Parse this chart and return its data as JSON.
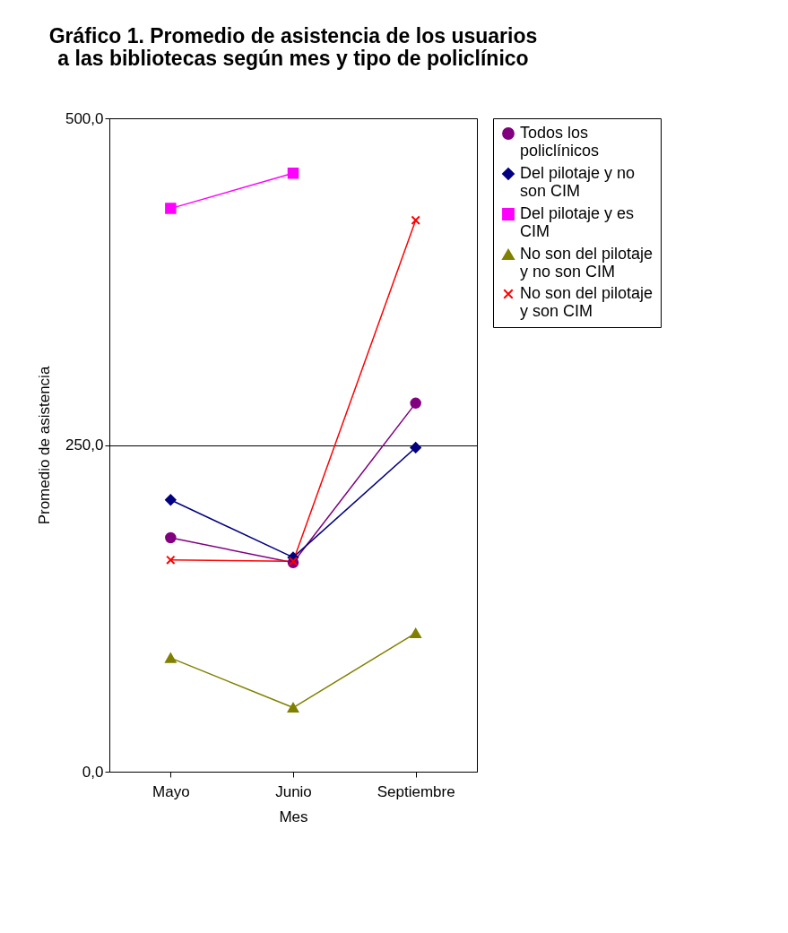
{
  "chart_data": {
    "type": "line",
    "title": "Gráfico 1. Promedio de asistencia de los usuarios a las bibliotecas según mes y tipo de policlínico",
    "xlabel": "Mes",
    "ylabel": "Promedio de asistencia",
    "categories": [
      "Mayo",
      "Junio",
      "Septiembre"
    ],
    "series": [
      {
        "name": "Todos los policlínicos",
        "color": "#800080",
        "marker": "circle",
        "values": [
          179,
          160,
          282
        ]
      },
      {
        "name": "Del pilotaje y no son CIM",
        "color": "#000080",
        "marker": "diamond",
        "values": [
          208,
          164,
          248
        ]
      },
      {
        "name": "Del pilotaje y es CIM",
        "color": "#ff00ff",
        "marker": "square",
        "values": [
          431,
          458,
          null
        ]
      },
      {
        "name": "No son del pilotaje y no son CIM",
        "color": "#808000",
        "marker": "triangle",
        "values": [
          87,
          49,
          106
        ]
      },
      {
        "name": "No son del pilotaje y son CIM",
        "color": "#ff0000",
        "marker": "cross",
        "values": [
          162,
          161,
          422
        ]
      }
    ],
    "ylim": [
      0,
      500
    ],
    "yticks": [
      {
        "value": 0,
        "label": "0,0"
      },
      {
        "value": 250,
        "label": "250,0"
      },
      {
        "value": 500,
        "label": "500,0"
      }
    ],
    "grid": "y",
    "legend": "right",
    "line_style": "solid"
  }
}
